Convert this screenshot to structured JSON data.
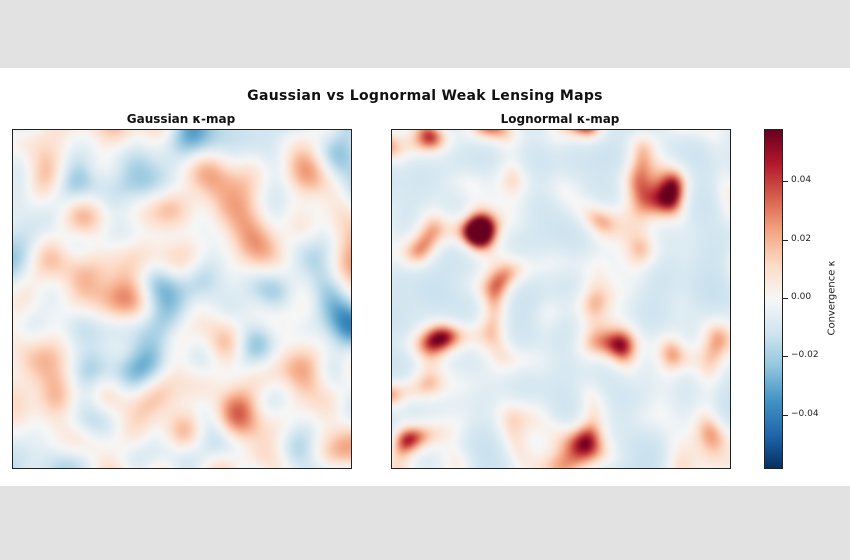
{
  "chart_data": {
    "type": "heatmap",
    "title": "Gaussian vs Lognormal Weak Lensing Maps",
    "panels": [
      {
        "title": "Gaussian κ-map",
        "field": "gaussian"
      },
      {
        "title": "Lognormal κ-map",
        "field": "lognormal"
      }
    ],
    "colorbar": {
      "label": "Convergence κ",
      "colormap": "RdBu_r",
      "vmin": -0.058,
      "vmax": 0.058,
      "ticks": [
        0.04,
        0.02,
        0.0,
        -0.02,
        -0.04
      ],
      "tick_labels": [
        "0.04",
        "0.02",
        "0.00",
        "−0.02",
        "−0.04"
      ]
    }
  }
}
